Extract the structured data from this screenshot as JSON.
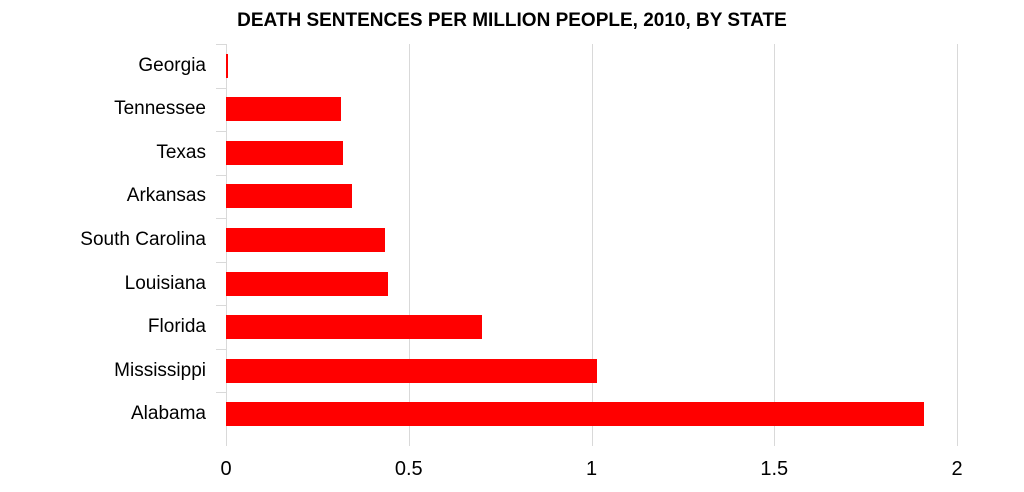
{
  "chart_data": {
    "type": "bar",
    "orientation": "horizontal",
    "title": "DEATH SENTENCES PER MILLION PEOPLE, 2010, BY STATE",
    "categories": [
      "Georgia",
      "Tennessee",
      "Texas",
      "Arkansas",
      "South Carolina",
      "Louisiana",
      "Florida",
      "Mississippi",
      "Alabama"
    ],
    "values": [
      0.005,
      0.315,
      0.32,
      0.345,
      0.435,
      0.443,
      0.7,
      1.015,
      1.91
    ],
    "xlabel": "",
    "ylabel": "",
    "xlim": [
      0,
      2
    ],
    "xticks": [
      "0",
      "0.5",
      "1",
      "1.5",
      "2"
    ],
    "grid": true,
    "legend": null,
    "bar_color": "#ff0000"
  }
}
